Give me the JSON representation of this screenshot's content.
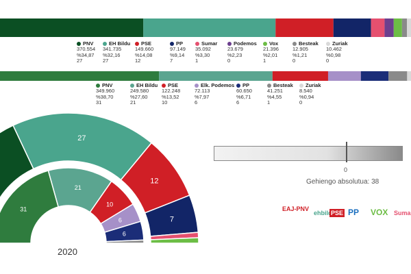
{
  "colors": {
    "PNV": "#0b4f23",
    "EH Bildu": "#4aa58d",
    "PSE": "#d01f26",
    "PP": "#122567",
    "Sumar": "#e5506f",
    "Podemos": "#6c3f8e",
    "Vox": "#6cbd45",
    "Besteak": "#8a8a8a",
    "Zuriak": "#d9d9d9",
    "Elk. Podemos": "#9e87c2",
    "PNV_2020": "#2f7c3e",
    "EH Bildu_2020": "#5ba590",
    "PSE_2020": "#d01f26",
    "PP_2020": "#1b2d78",
    "Elk. Podemos_2020": "#a690c8"
  },
  "chart_data": [
    {
      "type": "bar",
      "name": "current-results",
      "categories": [
        "PNV",
        "EH Bildu",
        "PSE",
        "PP",
        "Sumar",
        "Podemos",
        "Vox",
        "Besteak",
        "Zuriak"
      ],
      "votes": [
        "370.554",
        "341.735",
        "149.660",
        "97.149",
        "35.092",
        "23.679",
        "21.396",
        "12.905",
        "10.462"
      ],
      "percent": [
        "%34,87",
        "%32,16",
        "%14,08",
        "%9,14",
        "%3,30",
        "%2,23",
        "%2,01",
        "%1,21",
        "%0,98"
      ],
      "seats": [
        27,
        27,
        12,
        7,
        1,
        0,
        1,
        0,
        0
      ]
    },
    {
      "type": "bar",
      "name": "results-2020",
      "categories": [
        "PNV",
        "EH Bildu",
        "PSE",
        "Elk. Podemos",
        "PP",
        "Besteak",
        "Zuriak"
      ],
      "votes": [
        "349.960",
        "249.580",
        "122.248",
        "72.113",
        "60.650",
        "41.251",
        "8.540"
      ],
      "percent": [
        "%38,70",
        "%27,60",
        "%13,52",
        "%7,97",
        "%6,71",
        "%4,55",
        "%0,94"
      ],
      "seats": [
        31,
        21,
        10,
        6,
        6,
        1,
        0
      ]
    }
  ],
  "majority": {
    "zero_label": "0",
    "label": "Gehiengo absolutua: 38"
  },
  "year_label": "2020",
  "logos": [
    "EAJ-PNV",
    "ehbildu",
    "PSE",
    "PP",
    "VOX",
    "Sumar"
  ]
}
